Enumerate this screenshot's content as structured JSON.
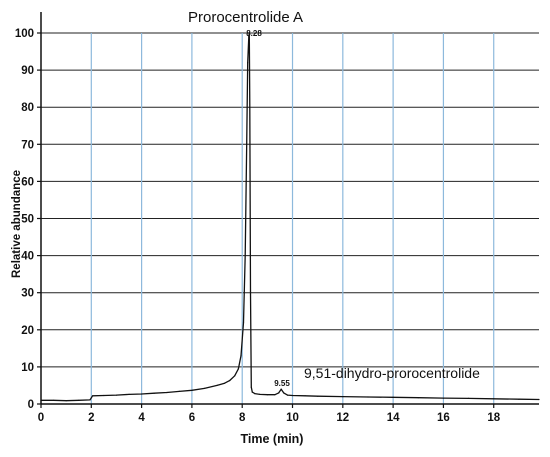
{
  "chart_data": {
    "type": "line",
    "title": "",
    "xlabel": "Time (min)",
    "ylabel": "Relative abundance",
    "xlim": [
      0,
      19.8
    ],
    "ylim": [
      0,
      100
    ],
    "x_ticks": [
      "0",
      "2",
      "4",
      "6",
      "8",
      "10",
      "12",
      "14",
      "16",
      "18"
    ],
    "x_tick_values": [
      0,
      2,
      4,
      6,
      8,
      10,
      12,
      14,
      16,
      18
    ],
    "y_ticks": [
      "0",
      "10",
      "20",
      "30",
      "40",
      "50",
      "60",
      "70",
      "80",
      "90",
      "100"
    ],
    "y_tick_values": [
      0,
      10,
      20,
      30,
      40,
      50,
      60,
      70,
      80,
      90,
      100
    ],
    "grid": {
      "horizontal": true,
      "vertical": true,
      "vertical_color": "#8db9dc",
      "horizontal_color": "#222222"
    },
    "series": [
      {
        "color": "#111111",
        "x": [
          0,
          0.5,
          1.0,
          1.5,
          1.95,
          2.05,
          2.5,
          3.0,
          3.5,
          4.0,
          4.5,
          5.0,
          5.5,
          6.0,
          6.5,
          7.0,
          7.3,
          7.5,
          7.7,
          7.85,
          7.95,
          8.05,
          8.12,
          8.18,
          8.22,
          8.26,
          8.28,
          8.3,
          8.33,
          8.36,
          8.4,
          8.5,
          8.7,
          9.0,
          9.3,
          9.45,
          9.55,
          9.65,
          9.8,
          10.0,
          10.5,
          11.0,
          12.0,
          13.0,
          14.0,
          15.0,
          16.0,
          17.0,
          18.0,
          19.0,
          19.8
        ],
        "y": [
          1.0,
          1.0,
          0.9,
          1.0,
          1.1,
          2.2,
          2.3,
          2.4,
          2.6,
          2.7,
          2.9,
          3.1,
          3.4,
          3.7,
          4.2,
          5.0,
          5.6,
          6.3,
          7.6,
          9.5,
          13.0,
          22.0,
          40.0,
          70.0,
          92.0,
          99.0,
          100.0,
          80.0,
          30.0,
          4.5,
          3.2,
          2.8,
          2.6,
          2.5,
          2.5,
          3.0,
          4.0,
          3.0,
          2.4,
          2.3,
          2.2,
          2.1,
          2.0,
          1.9,
          1.8,
          1.7,
          1.6,
          1.5,
          1.4,
          1.3,
          1.2
        ]
      }
    ],
    "annotations": [
      {
        "text": "Prorocentrolide A",
        "x": 8.28,
        "y": 100
      },
      {
        "text": "8.28",
        "x": 8.28,
        "y": 100
      },
      {
        "text": "9.55",
        "x": 9.55,
        "y": 4
      },
      {
        "text": "9,51-dihydro-prorocentrolide",
        "x": 9.55,
        "y": 4
      }
    ]
  }
}
